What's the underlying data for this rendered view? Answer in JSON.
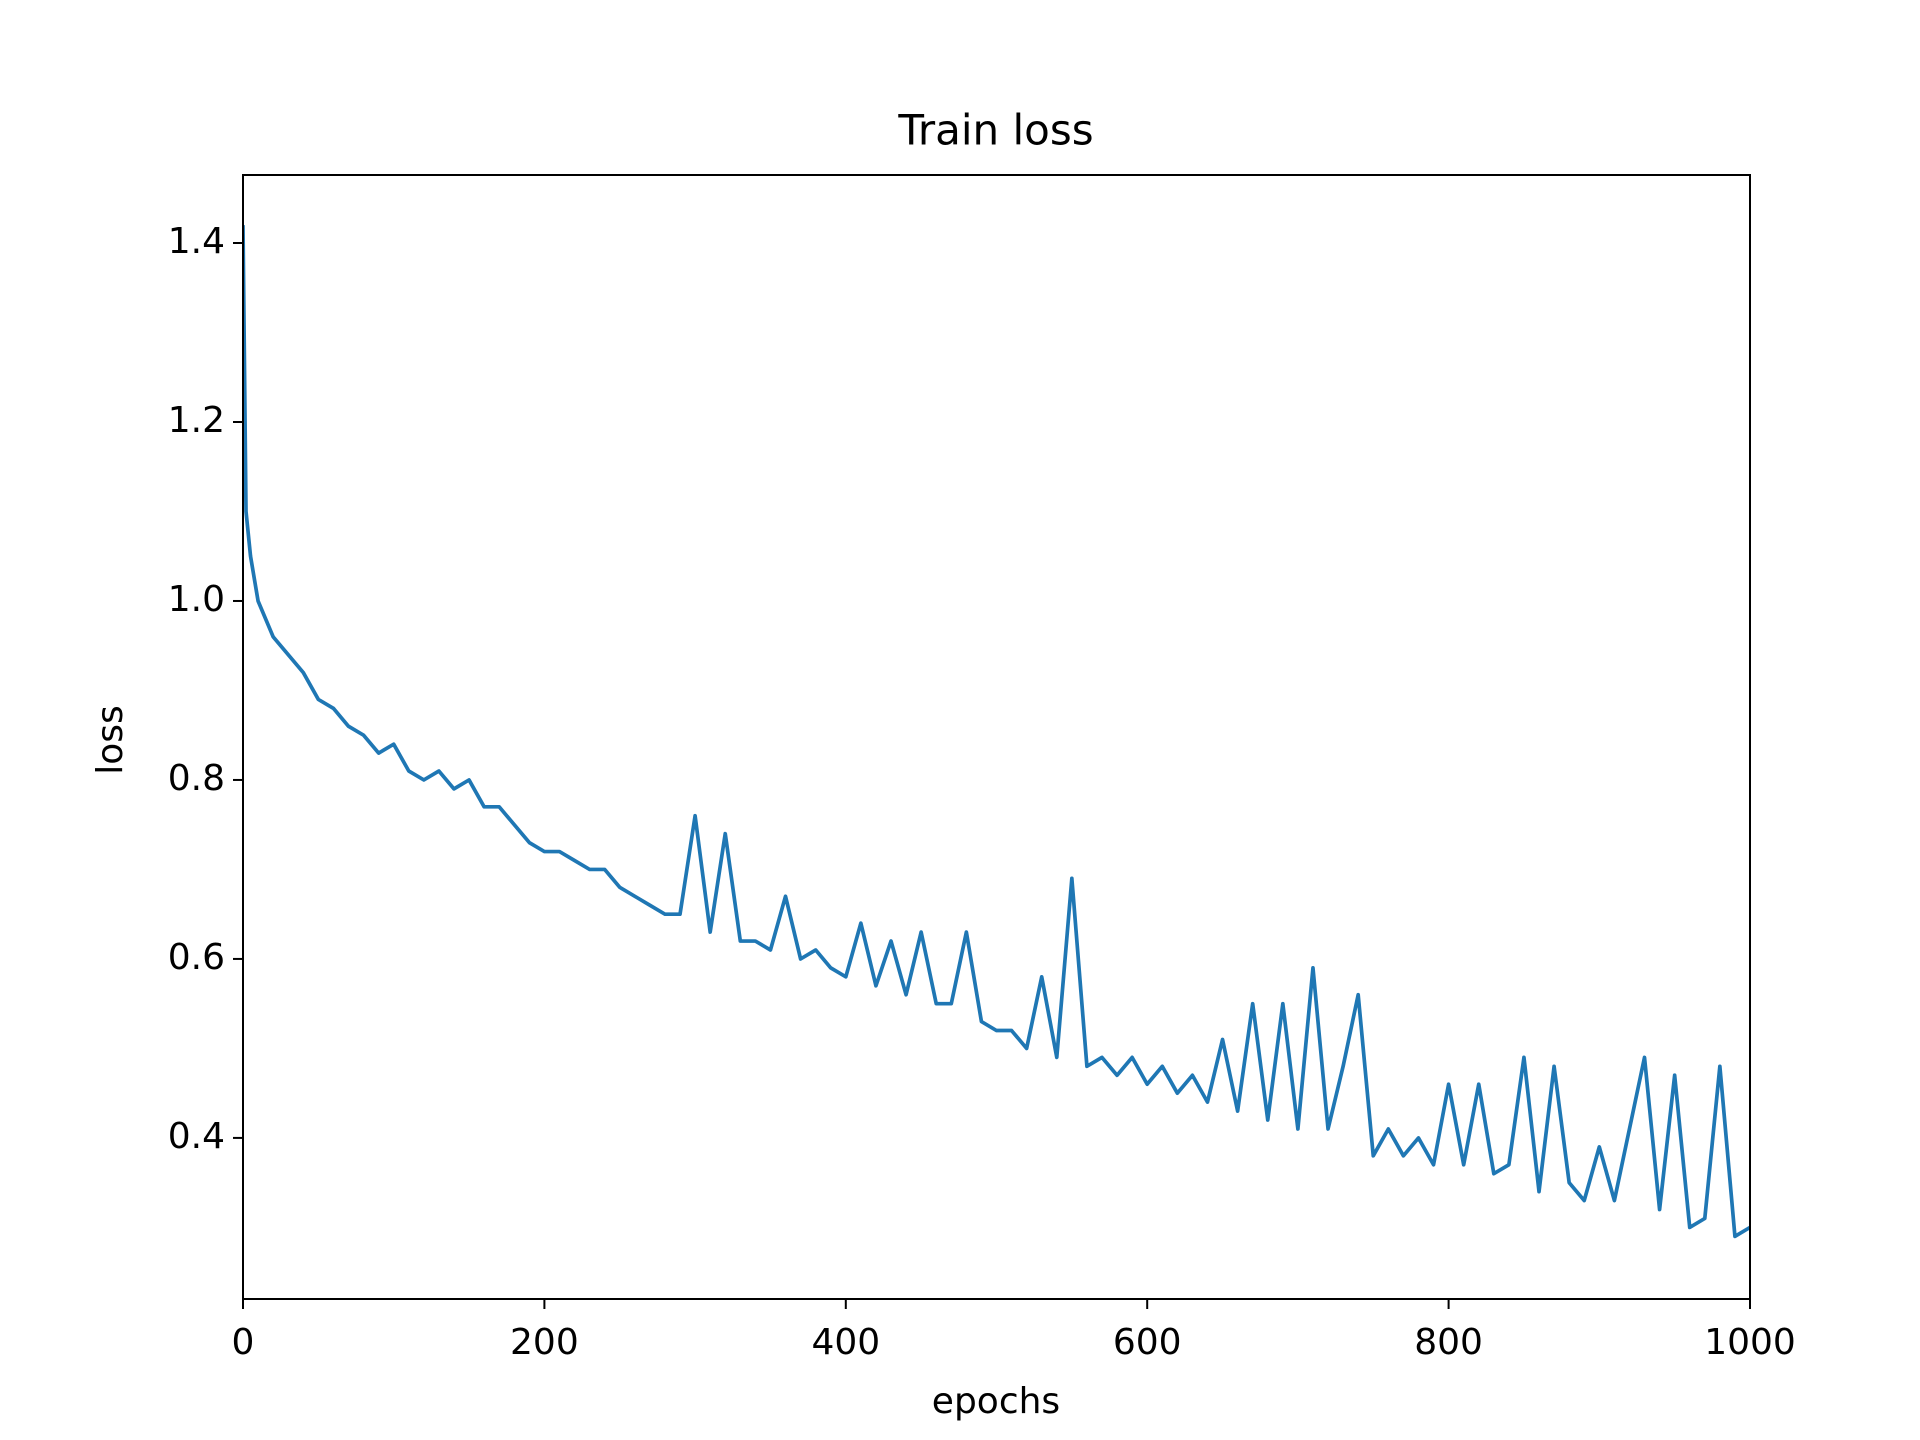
{
  "chart_data": {
    "type": "line",
    "title": "Train loss",
    "x_label": "epochs",
    "y_label": "loss",
    "x": [
      0,
      2,
      5,
      10,
      20,
      30,
      40,
      50,
      60,
      70,
      80,
      90,
      100,
      110,
      120,
      130,
      140,
      150,
      160,
      170,
      180,
      190,
      200,
      210,
      220,
      230,
      240,
      250,
      260,
      270,
      280,
      290,
      300,
      310,
      320,
      330,
      340,
      350,
      360,
      370,
      380,
      390,
      400,
      410,
      420,
      430,
      440,
      450,
      460,
      470,
      480,
      490,
      500,
      510,
      520,
      530,
      540,
      550,
      560,
      570,
      580,
      590,
      600,
      610,
      620,
      630,
      640,
      650,
      660,
      670,
      680,
      690,
      700,
      710,
      720,
      730,
      740,
      750,
      760,
      770,
      780,
      790,
      800,
      810,
      820,
      830,
      840,
      850,
      860,
      870,
      880,
      890,
      900,
      910,
      920,
      930,
      940,
      950,
      960,
      970,
      980,
      990,
      1000
    ],
    "values": [
      1.42,
      1.1,
      1.05,
      1.0,
      0.96,
      0.94,
      0.92,
      0.89,
      0.88,
      0.86,
      0.85,
      0.83,
      0.84,
      0.81,
      0.8,
      0.81,
      0.79,
      0.8,
      0.77,
      0.77,
      0.75,
      0.73,
      0.72,
      0.72,
      0.71,
      0.7,
      0.7,
      0.68,
      0.67,
      0.66,
      0.65,
      0.65,
      0.76,
      0.63,
      0.74,
      0.62,
      0.62,
      0.61,
      0.67,
      0.6,
      0.61,
      0.59,
      0.58,
      0.64,
      0.57,
      0.62,
      0.56,
      0.63,
      0.55,
      0.55,
      0.63,
      0.53,
      0.52,
      0.52,
      0.5,
      0.58,
      0.49,
      0.69,
      0.48,
      0.49,
      0.47,
      0.49,
      0.46,
      0.48,
      0.45,
      0.47,
      0.44,
      0.51,
      0.43,
      0.55,
      0.42,
      0.55,
      0.41,
      0.59,
      0.41,
      0.48,
      0.56,
      0.38,
      0.41,
      0.38,
      0.4,
      0.37,
      0.46,
      0.37,
      0.46,
      0.36,
      0.37,
      0.49,
      0.34,
      0.48,
      0.35,
      0.33,
      0.39,
      0.33,
      0.41,
      0.49,
      0.32,
      0.47,
      0.3,
      0.31,
      0.48,
      0.29,
      0.3
    ],
    "color": "#1f77b4",
    "xlim": [
      0,
      1000
    ],
    "xticks": [
      0,
      200,
      400,
      600,
      800,
      1000
    ],
    "ylim": [
      0.22,
      1.476
    ],
    "yticks": [
      0.4,
      0.6,
      0.8,
      {
        "value": 1,
        "label": "1.0"
      },
      1.2,
      1.4
    ]
  }
}
